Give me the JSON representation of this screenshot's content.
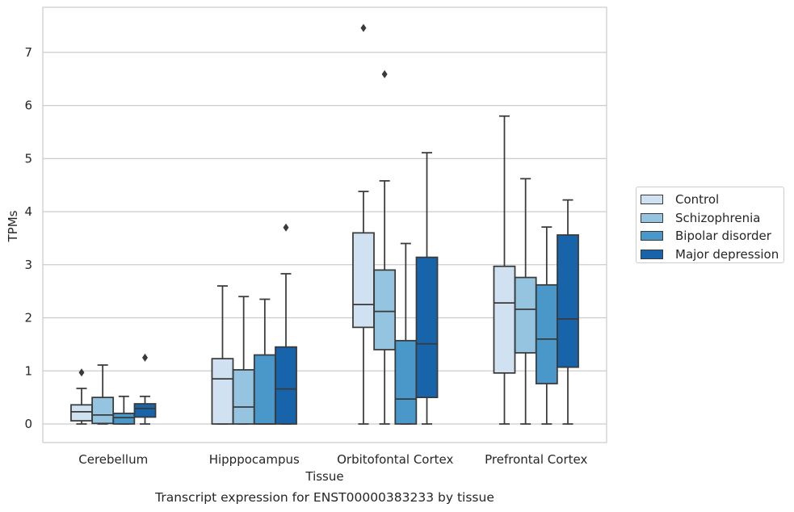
{
  "chart_data": {
    "type": "boxplot",
    "title": "Transcript expression for ENST00000383233 by tissue",
    "xlabel": "Tissue",
    "ylabel": "TPMs",
    "ylim": [
      -0.35,
      7.85
    ],
    "yticks": [
      0,
      1,
      2,
      3,
      4,
      5,
      6,
      7
    ],
    "grid": "horizontal",
    "legend_position": "right",
    "categories": [
      "Cerebellum",
      "Hipppocampus",
      "Orbitofontal Cortex",
      "Prefrontal Cortex"
    ],
    "series": [
      {
        "name": "Control",
        "color": "#d0e1f2",
        "boxes": [
          {
            "whislo": 0.0,
            "q1": 0.06,
            "median": 0.23,
            "q3": 0.36,
            "whishi": 0.67,
            "fliers": [
              0.97
            ]
          },
          {
            "whislo": 0.0,
            "q1": 0.0,
            "median": 0.85,
            "q3": 1.23,
            "whishi": 2.6,
            "fliers": []
          },
          {
            "whislo": 0.0,
            "q1": 1.82,
            "median": 2.25,
            "q3": 3.6,
            "whishi": 4.38,
            "fliers": [
              7.46
            ]
          },
          {
            "whislo": 0.0,
            "q1": 0.96,
            "median": 2.28,
            "q3": 2.97,
            "whishi": 5.8,
            "fliers": []
          }
        ]
      },
      {
        "name": "Schizophrenia",
        "color": "#94c4df",
        "boxes": [
          {
            "whislo": 0.0,
            "q1": 0.01,
            "median": 0.17,
            "q3": 0.5,
            "whishi": 1.11,
            "fliers": []
          },
          {
            "whislo": 0.0,
            "q1": 0.0,
            "median": 0.32,
            "q3": 1.02,
            "whishi": 2.4,
            "fliers": []
          },
          {
            "whislo": 0.0,
            "q1": 1.4,
            "median": 2.12,
            "q3": 2.9,
            "whishi": 4.58,
            "fliers": [
              6.59
            ]
          },
          {
            "whislo": 0.0,
            "q1": 1.34,
            "median": 2.16,
            "q3": 2.76,
            "whishi": 4.62,
            "fliers": []
          }
        ]
      },
      {
        "name": "Bipolar disorder",
        "color": "#4a98c9",
        "boxes": [
          {
            "whislo": 0.0,
            "q1": 0.0,
            "median": 0.12,
            "q3": 0.2,
            "whishi": 0.52,
            "fliers": []
          },
          {
            "whislo": 0.0,
            "q1": 0.0,
            "median": 0.0,
            "q3": 1.3,
            "whishi": 2.35,
            "fliers": []
          },
          {
            "whislo": 0.0,
            "q1": 0.0,
            "median": 0.47,
            "q3": 1.57,
            "whishi": 3.4,
            "fliers": []
          },
          {
            "whislo": 0.0,
            "q1": 0.76,
            "median": 1.6,
            "q3": 2.62,
            "whishi": 3.71,
            "fliers": []
          }
        ]
      },
      {
        "name": "Major depression",
        "color": "#1764ab",
        "boxes": [
          {
            "whislo": 0.0,
            "q1": 0.13,
            "median": 0.29,
            "q3": 0.38,
            "whishi": 0.52,
            "fliers": [
              1.25
            ]
          },
          {
            "whislo": 0.0,
            "q1": 0.0,
            "median": 0.66,
            "q3": 1.45,
            "whishi": 2.83,
            "fliers": [
              3.7
            ]
          },
          {
            "whislo": 0.0,
            "q1": 0.5,
            "median": 1.51,
            "q3": 3.14,
            "whishi": 5.11,
            "fliers": []
          },
          {
            "whislo": 0.0,
            "q1": 1.07,
            "median": 1.98,
            "q3": 3.56,
            "whishi": 4.22,
            "fliers": []
          }
        ]
      }
    ]
  }
}
